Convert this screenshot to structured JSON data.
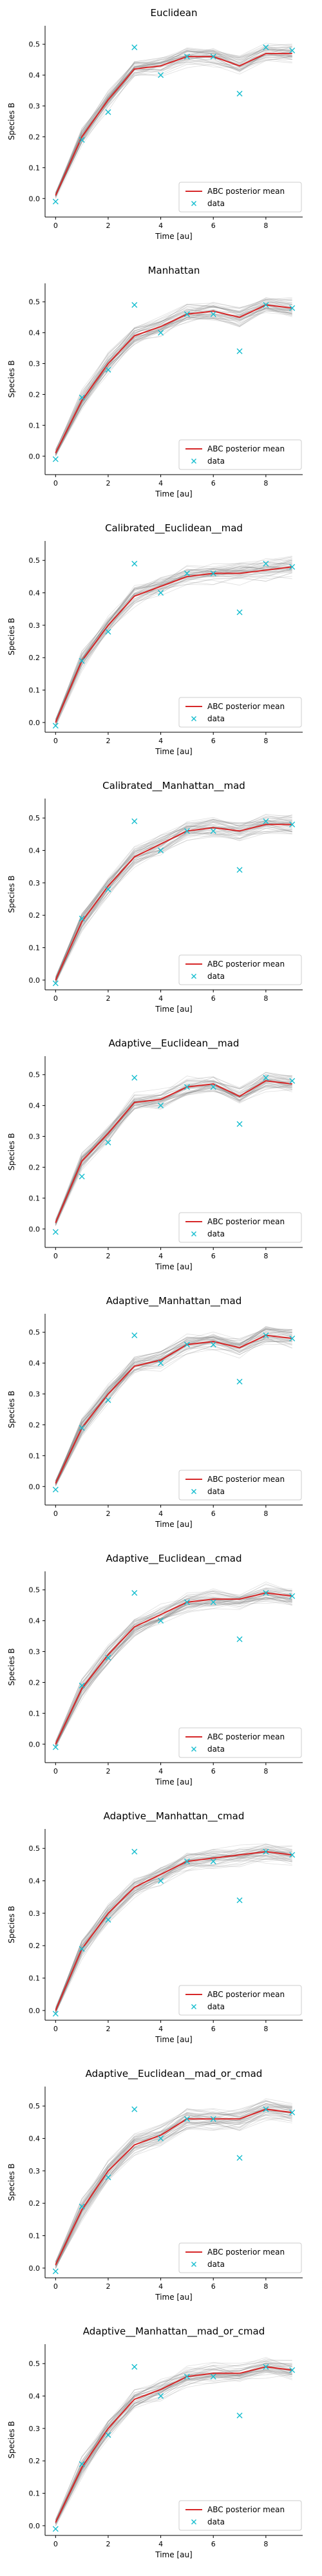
{
  "chart_data": [
    {
      "type": "line",
      "title": "Euclidean",
      "xlabel": "Time [au]",
      "ylabel": "Species B",
      "xlim": [
        -0.4,
        9.4
      ],
      "ylim": [
        -0.06,
        0.56
      ],
      "xticks": [
        "0",
        "2",
        "4",
        "6",
        "8"
      ],
      "yticks": [
        "0.0",
        "0.1",
        "0.2",
        "0.3",
        "0.4",
        "0.5"
      ],
      "legend_position": "lower-right",
      "series": [
        {
          "name": "ABC posterior mean",
          "kind": "line",
          "color": "#d62728",
          "x": [
            0,
            1,
            2,
            3,
            4,
            5,
            6,
            7,
            8,
            9
          ],
          "y": [
            0.01,
            0.2,
            0.32,
            0.42,
            0.43,
            0.46,
            0.46,
            0.43,
            0.47,
            0.47
          ]
        },
        {
          "name": "data",
          "kind": "scatter",
          "marker": "x",
          "color": "#17becf",
          "x": [
            0,
            1,
            2,
            3,
            4,
            5,
            6,
            7,
            8,
            9
          ],
          "y": [
            -0.01,
            0.19,
            0.28,
            0.49,
            0.4,
            0.46,
            0.46,
            0.34,
            0.49,
            0.48
          ]
        }
      ]
    },
    {
      "type": "line",
      "title": "Manhattan",
      "xlabel": "Time [au]",
      "ylabel": "Species B",
      "xlim": [
        -0.4,
        9.4
      ],
      "ylim": [
        -0.06,
        0.56
      ],
      "xticks": [
        "0",
        "2",
        "4",
        "6",
        "8"
      ],
      "yticks": [
        "0.0",
        "0.1",
        "0.2",
        "0.3",
        "0.4",
        "0.5"
      ],
      "legend_position": "lower-right",
      "series": [
        {
          "name": "ABC posterior mean",
          "kind": "line",
          "color": "#d62728",
          "x": [
            0,
            1,
            2,
            3,
            4,
            5,
            6,
            7,
            8,
            9
          ],
          "y": [
            0.01,
            0.18,
            0.3,
            0.39,
            0.42,
            0.46,
            0.47,
            0.45,
            0.49,
            0.48
          ]
        },
        {
          "name": "data",
          "kind": "scatter",
          "marker": "x",
          "color": "#17becf",
          "x": [
            0,
            1,
            2,
            3,
            4,
            5,
            6,
            7,
            8,
            9
          ],
          "y": [
            -0.01,
            0.19,
            0.28,
            0.49,
            0.4,
            0.46,
            0.46,
            0.34,
            0.49,
            0.48
          ]
        }
      ]
    },
    {
      "type": "line",
      "title": "Calibrated__Euclidean__mad",
      "xlabel": "Time [au]",
      "ylabel": "Species B",
      "xlim": [
        -0.4,
        9.4
      ],
      "ylim": [
        -0.03,
        0.56
      ],
      "xticks": [
        "0",
        "2",
        "4",
        "6",
        "8"
      ],
      "yticks": [
        "0.0",
        "0.1",
        "0.2",
        "0.3",
        "0.4",
        "0.5"
      ],
      "legend_position": "lower-right",
      "series": [
        {
          "name": "ABC posterior mean",
          "kind": "line",
          "color": "#d62728",
          "x": [
            0,
            1,
            2,
            3,
            4,
            5,
            6,
            7,
            8,
            9
          ],
          "y": [
            0.0,
            0.19,
            0.3,
            0.39,
            0.42,
            0.45,
            0.46,
            0.46,
            0.47,
            0.48
          ]
        },
        {
          "name": "data",
          "kind": "scatter",
          "marker": "x",
          "color": "#17becf",
          "x": [
            0,
            1,
            2,
            3,
            4,
            5,
            6,
            7,
            8,
            9
          ],
          "y": [
            -0.01,
            0.19,
            0.28,
            0.49,
            0.4,
            0.46,
            0.46,
            0.34,
            0.49,
            0.48
          ]
        }
      ]
    },
    {
      "type": "line",
      "title": "Calibrated__Manhattan__mad",
      "xlabel": "Time [au]",
      "ylabel": "Species B",
      "xlim": [
        -0.4,
        9.4
      ],
      "ylim": [
        -0.03,
        0.56
      ],
      "xticks": [
        "0",
        "2",
        "4",
        "6",
        "8"
      ],
      "yticks": [
        "0.0",
        "0.1",
        "0.2",
        "0.3",
        "0.4",
        "0.5"
      ],
      "legend_position": "lower-right",
      "series": [
        {
          "name": "ABC posterior mean",
          "kind": "line",
          "color": "#d62728",
          "x": [
            0,
            1,
            2,
            3,
            4,
            5,
            6,
            7,
            8,
            9
          ],
          "y": [
            0.0,
            0.18,
            0.29,
            0.38,
            0.42,
            0.46,
            0.47,
            0.46,
            0.48,
            0.48
          ]
        },
        {
          "name": "data",
          "kind": "scatter",
          "marker": "x",
          "color": "#17becf",
          "x": [
            0,
            1,
            2,
            3,
            4,
            5,
            6,
            7,
            8,
            9
          ],
          "y": [
            -0.01,
            0.19,
            0.28,
            0.49,
            0.4,
            0.46,
            0.46,
            0.34,
            0.49,
            0.48
          ]
        }
      ]
    },
    {
      "type": "line",
      "title": "Adaptive__Euclidean__mad",
      "xlabel": "Time [au]",
      "ylabel": "Species B",
      "xlim": [
        -0.4,
        9.4
      ],
      "ylim": [
        -0.06,
        0.56
      ],
      "xticks": [
        "0",
        "2",
        "4",
        "6",
        "8"
      ],
      "yticks": [
        "0.0",
        "0.1",
        "0.2",
        "0.3",
        "0.4",
        "0.5"
      ],
      "legend_position": "lower-right",
      "series": [
        {
          "name": "ABC posterior mean",
          "kind": "line",
          "color": "#d62728",
          "x": [
            0,
            1,
            2,
            3,
            4,
            5,
            6,
            7,
            8,
            9
          ],
          "y": [
            0.02,
            0.22,
            0.31,
            0.41,
            0.42,
            0.46,
            0.47,
            0.43,
            0.48,
            0.47
          ]
        },
        {
          "name": "data",
          "kind": "scatter",
          "marker": "x",
          "color": "#17becf",
          "x": [
            0,
            1,
            2,
            3,
            4,
            5,
            6,
            7,
            8,
            9
          ],
          "y": [
            -0.01,
            0.17,
            0.28,
            0.49,
            0.4,
            0.46,
            0.46,
            0.34,
            0.49,
            0.48
          ]
        }
      ]
    },
    {
      "type": "line",
      "title": "Adaptive__Manhattan__mad",
      "xlabel": "Time [au]",
      "ylabel": "Species B",
      "xlim": [
        -0.4,
        9.4
      ],
      "ylim": [
        -0.06,
        0.56
      ],
      "xticks": [
        "0",
        "2",
        "4",
        "6",
        "8"
      ],
      "yticks": [
        "0.0",
        "0.1",
        "0.2",
        "0.3",
        "0.4",
        "0.5"
      ],
      "legend_position": "lower-right",
      "series": [
        {
          "name": "ABC posterior mean",
          "kind": "line",
          "color": "#d62728",
          "x": [
            0,
            1,
            2,
            3,
            4,
            5,
            6,
            7,
            8,
            9
          ],
          "y": [
            0.01,
            0.19,
            0.3,
            0.39,
            0.41,
            0.46,
            0.47,
            0.45,
            0.49,
            0.48
          ]
        },
        {
          "name": "data",
          "kind": "scatter",
          "marker": "x",
          "color": "#17becf",
          "x": [
            0,
            1,
            2,
            3,
            4,
            5,
            6,
            7,
            8,
            9
          ],
          "y": [
            -0.01,
            0.19,
            0.28,
            0.49,
            0.4,
            0.46,
            0.46,
            0.34,
            0.49,
            0.48
          ]
        }
      ]
    },
    {
      "type": "line",
      "title": "Adaptive__Euclidean__cmad",
      "xlabel": "Time [au]",
      "ylabel": "Species B",
      "xlim": [
        -0.4,
        9.4
      ],
      "ylim": [
        -0.06,
        0.56
      ],
      "xticks": [
        "0",
        "2",
        "4",
        "6",
        "8"
      ],
      "yticks": [
        "0.0",
        "0.1",
        "0.2",
        "0.3",
        "0.4",
        "0.5"
      ],
      "legend_position": "lower-right",
      "series": [
        {
          "name": "ABC posterior mean",
          "kind": "line",
          "color": "#d62728",
          "x": [
            0,
            1,
            2,
            3,
            4,
            5,
            6,
            7,
            8,
            9
          ],
          "y": [
            0.0,
            0.18,
            0.29,
            0.38,
            0.42,
            0.46,
            0.47,
            0.47,
            0.49,
            0.48
          ]
        },
        {
          "name": "data",
          "kind": "scatter",
          "marker": "x",
          "color": "#17becf",
          "x": [
            0,
            1,
            2,
            3,
            4,
            5,
            6,
            7,
            8,
            9
          ],
          "y": [
            -0.01,
            0.19,
            0.28,
            0.49,
            0.4,
            0.46,
            0.46,
            0.34,
            0.49,
            0.48
          ]
        }
      ]
    },
    {
      "type": "line",
      "title": "Adaptive__Manhattan__cmad",
      "xlabel": "Time [au]",
      "ylabel": "Species B",
      "xlim": [
        -0.4,
        9.4
      ],
      "ylim": [
        -0.03,
        0.56
      ],
      "xticks": [
        "0",
        "2",
        "4",
        "6",
        "8"
      ],
      "yticks": [
        "0.0",
        "0.1",
        "0.2",
        "0.3",
        "0.4",
        "0.5"
      ],
      "legend_position": "lower-right",
      "series": [
        {
          "name": "ABC posterior mean",
          "kind": "line",
          "color": "#d62728",
          "x": [
            0,
            1,
            2,
            3,
            4,
            5,
            6,
            7,
            8,
            9
          ],
          "y": [
            0.0,
            0.19,
            0.3,
            0.38,
            0.42,
            0.46,
            0.47,
            0.48,
            0.49,
            0.48
          ]
        },
        {
          "name": "data",
          "kind": "scatter",
          "marker": "x",
          "color": "#17becf",
          "x": [
            0,
            1,
            2,
            3,
            4,
            5,
            6,
            7,
            8,
            9
          ],
          "y": [
            -0.01,
            0.19,
            0.28,
            0.49,
            0.4,
            0.46,
            0.46,
            0.34,
            0.49,
            0.48
          ]
        }
      ]
    },
    {
      "type": "line",
      "title": "Adaptive__Euclidean__mad_or_cmad",
      "xlabel": "Time [au]",
      "ylabel": "Species B",
      "xlim": [
        -0.4,
        9.4
      ],
      "ylim": [
        -0.03,
        0.56
      ],
      "xticks": [
        "0",
        "2",
        "4",
        "6",
        "8"
      ],
      "yticks": [
        "0.0",
        "0.1",
        "0.2",
        "0.3",
        "0.4",
        "0.5"
      ],
      "legend_position": "lower-right",
      "series": [
        {
          "name": "ABC posterior mean",
          "kind": "line",
          "color": "#d62728",
          "x": [
            0,
            1,
            2,
            3,
            4,
            5,
            6,
            7,
            8,
            9
          ],
          "y": [
            0.01,
            0.18,
            0.3,
            0.38,
            0.41,
            0.46,
            0.46,
            0.46,
            0.49,
            0.48
          ]
        },
        {
          "name": "data",
          "kind": "scatter",
          "marker": "x",
          "color": "#17becf",
          "x": [
            0,
            1,
            2,
            3,
            4,
            5,
            6,
            7,
            8,
            9
          ],
          "y": [
            -0.01,
            0.19,
            0.28,
            0.49,
            0.4,
            0.46,
            0.46,
            0.34,
            0.49,
            0.48
          ]
        }
      ]
    },
    {
      "type": "line",
      "title": "Adaptive__Manhattan__mad_or_cmad",
      "xlabel": "Time [au]",
      "ylabel": "Species B",
      "xlim": [
        -0.4,
        9.4
      ],
      "ylim": [
        -0.03,
        0.56
      ],
      "xticks": [
        "0",
        "2",
        "4",
        "6",
        "8"
      ],
      "yticks": [
        "0.0",
        "0.1",
        "0.2",
        "0.3",
        "0.4",
        "0.5"
      ],
      "legend_position": "lower-right",
      "series": [
        {
          "name": "ABC posterior mean",
          "kind": "line",
          "color": "#d62728",
          "x": [
            0,
            1,
            2,
            3,
            4,
            5,
            6,
            7,
            8,
            9
          ],
          "y": [
            0.01,
            0.18,
            0.3,
            0.39,
            0.42,
            0.46,
            0.47,
            0.47,
            0.49,
            0.48
          ]
        },
        {
          "name": "data",
          "kind": "scatter",
          "marker": "x",
          "color": "#17becf",
          "x": [
            0,
            1,
            2,
            3,
            4,
            5,
            6,
            7,
            8,
            9
          ],
          "y": [
            -0.01,
            0.19,
            0.28,
            0.49,
            0.4,
            0.46,
            0.46,
            0.34,
            0.49,
            0.48
          ]
        }
      ]
    }
  ]
}
